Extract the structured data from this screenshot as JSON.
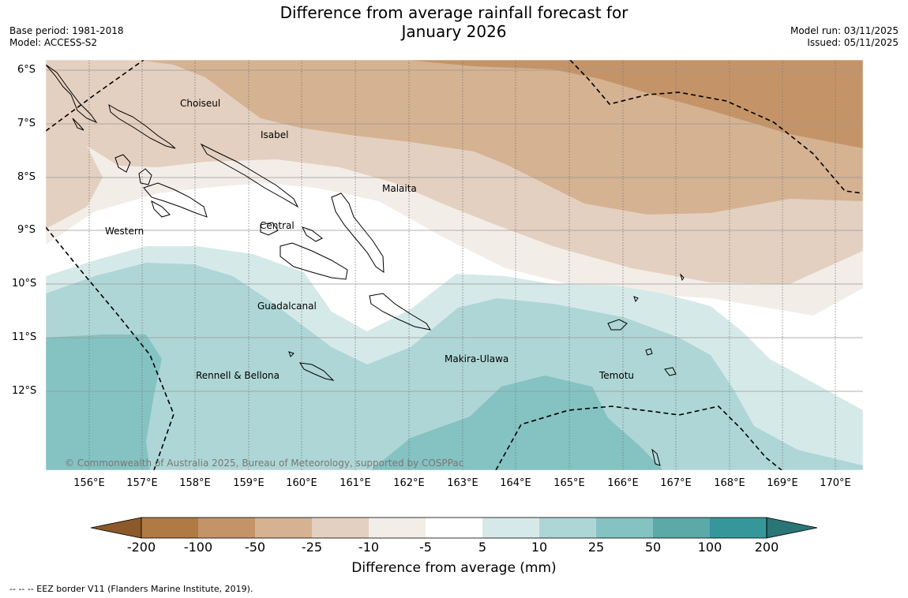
{
  "title_line1": "Difference from average rainfall forecast for",
  "title_line2": "January 2026",
  "base_period": "Base period: 1981-2018",
  "model": "Model: ACCESS-S2",
  "model_run": "Model run: 03/11/2025",
  "issued": "Issued: 05/11/2025",
  "lat_labels": [
    "6°S",
    "7°S",
    "8°S",
    "9°S",
    "10°S",
    "11°S",
    "12°S"
  ],
  "lon_labels": [
    "156°E",
    "157°E",
    "158°E",
    "159°E",
    "160°E",
    "161°E",
    "162°E",
    "163°E",
    "164°E",
    "165°E",
    "166°E",
    "167°E",
    "168°E",
    "169°E",
    "170°E"
  ],
  "regions": {
    "choiseul": "Choiseul",
    "isabel": "Isabel",
    "malaita": "Malaita",
    "western": "Western",
    "central": "Central",
    "guadalcanal": "Guadalcanal",
    "makira": "Makira-Ulawa",
    "rennell": "Rennell & Bellona",
    "temotu": "Temotu"
  },
  "copyright": "© Commonwealth of Australia 2025, Bureau of Meteorology, supported by COSPPac",
  "colorbar": {
    "ticks": [
      "-200",
      "-100",
      "-50",
      "-25",
      "-10",
      "-5",
      "5",
      "10",
      "25",
      "50",
      "100",
      "200"
    ],
    "colors": [
      "#8c5a2a",
      "#b07a44",
      "#c49468",
      "#d5b292",
      "#e4d0c0",
      "#f3ede8",
      "#ffffff",
      "#d6e9e9",
      "#aed6d6",
      "#85c2c2",
      "#5ba9a9",
      "#35979a",
      "#2a7576"
    ],
    "label": "Difference from average (mm)"
  },
  "footnote": "--  --  -- EEZ border V11 (Flanders Marine Institute, 2019)."
}
